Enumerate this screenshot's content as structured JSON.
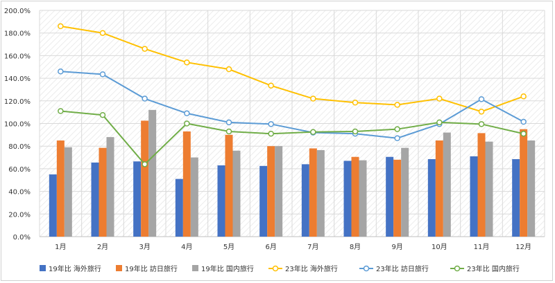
{
  "chart_data": {
    "type": "bar",
    "categories": [
      "1月",
      "2月",
      "3月",
      "4月",
      "5月",
      "6月",
      "7月",
      "8月",
      "9月",
      "10月",
      "11月",
      "12月"
    ],
    "y_tick_labels": [
      "0.0%",
      "20.0%",
      "40.0%",
      "60.0%",
      "80.0%",
      "100.0%",
      "120.0%",
      "140.0%",
      "160.0%",
      "180.0%",
      "200.0%"
    ],
    "ylim": [
      0,
      200
    ],
    "grid": true,
    "legend_position": "bottom",
    "series": [
      {
        "name": "19年比 海外旅行",
        "kind": "bar",
        "color": "#4472C4",
        "values": [
          55,
          65.5,
          66.5,
          51,
          63,
          62.5,
          64,
          67,
          70.5,
          68.5,
          71,
          68.5
        ]
      },
      {
        "name": "19年比 訪日旅行",
        "kind": "bar",
        "color": "#ED7D31",
        "values": [
          85,
          78.5,
          102.5,
          93,
          90,
          80,
          78,
          70.5,
          68,
          85,
          91.5,
          95
        ]
      },
      {
        "name": "19年比 国内旅行",
        "kind": "bar",
        "color": "#A5A5A5",
        "values": [
          79,
          88,
          112,
          70,
          76,
          80,
          76.5,
          67.5,
          78.5,
          92,
          84,
          85
        ]
      },
      {
        "name": "23年比 海外旅行",
        "kind": "line",
        "color": "#FFC000",
        "values": [
          186,
          180,
          166,
          154,
          148,
          133.5,
          122,
          118.5,
          116.5,
          122,
          110.5,
          124
        ]
      },
      {
        "name": "23年比 訪日旅行",
        "kind": "line",
        "color": "#5B9BD5",
        "values": [
          146,
          143.5,
          122,
          109,
          101,
          99.5,
          92,
          91,
          87,
          99.5,
          121.5,
          101.5
        ]
      },
      {
        "name": "23年比 国内旅行",
        "kind": "line",
        "color": "#70AD47",
        "values": [
          111,
          107.5,
          64,
          100,
          93,
          91,
          92.5,
          93,
          95,
          101,
          99.5,
          91
        ]
      }
    ]
  }
}
